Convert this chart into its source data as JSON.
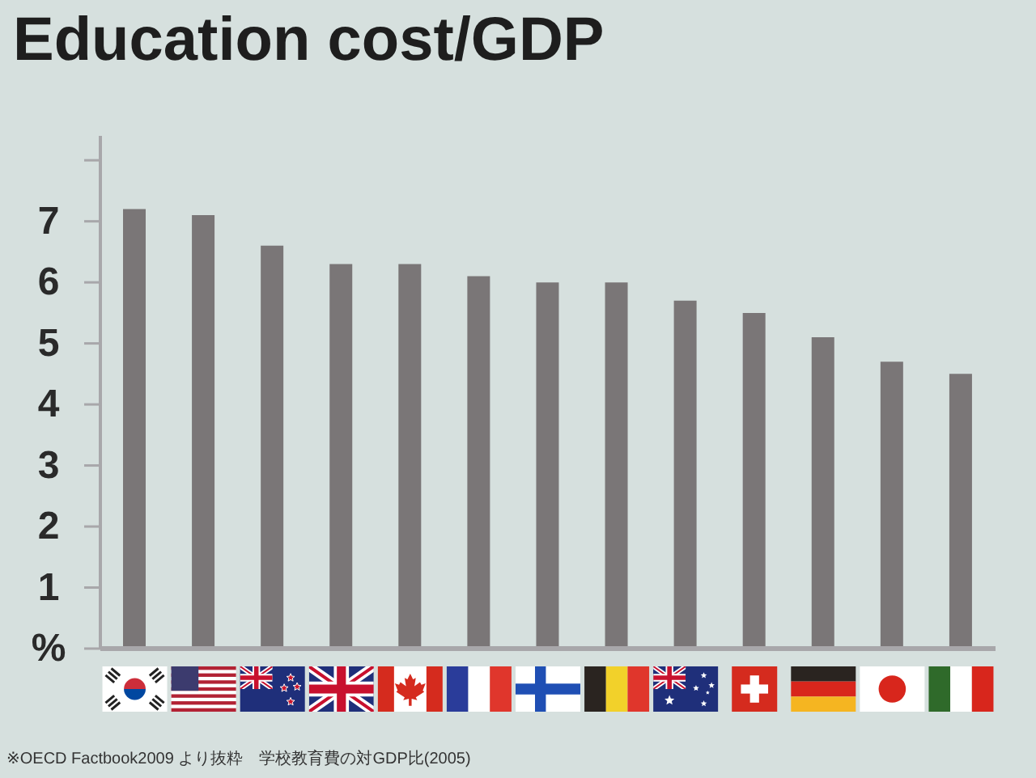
{
  "chart_data": {
    "type": "bar",
    "title": "Education cost/GDP",
    "categories": [
      null,
      null,
      null,
      null,
      null,
      null,
      null,
      null,
      null,
      null,
      null,
      null,
      null
    ],
    "values": [
      7.2,
      7.1,
      6.6,
      6.3,
      6.3,
      6.1,
      6.0,
      6.0,
      5.7,
      5.5,
      5.1,
      4.7,
      4.5
    ],
    "color": "#7a7677",
    "ylim": [
      0,
      8.4
    ],
    "yticks": [
      {
        "value": 0,
        "label": "%"
      },
      1,
      2,
      3,
      4,
      5,
      6,
      7,
      {
        "value": 8,
        "label": null
      }
    ],
    "annotations": [
      "※OECD Factbook2009 より抜粋　学校教育費の対GDP比(2005)"
    ]
  }
}
